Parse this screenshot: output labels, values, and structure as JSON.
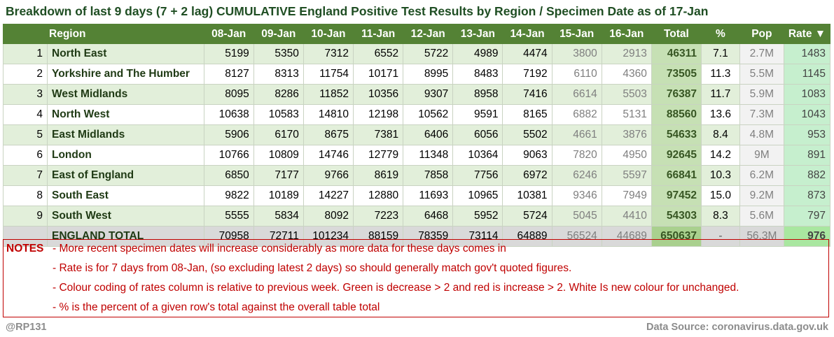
{
  "title": "Breakdown of last 9 days (7 + 2 lag) CUMULATIVE England Positive Test Results by Region / Specimen Date as of 17-Jan",
  "columns": [
    "",
    "Region",
    "08-Jan",
    "09-Jan",
    "10-Jan",
    "11-Jan",
    "12-Jan",
    "13-Jan",
    "14-Jan",
    "15-Jan",
    "16-Jan",
    "Total",
    "%",
    "Pop",
    "Rate ▼"
  ],
  "rows": [
    {
      "rank": "1",
      "region": "North East",
      "days": [
        "5199",
        "5350",
        "7312",
        "6552",
        "5722",
        "4989",
        "4474",
        "3800",
        "2913"
      ],
      "total": "46311",
      "pct": "7.1",
      "pop": "2.7M",
      "rate": "1483"
    },
    {
      "rank": "2",
      "region": "Yorkshire and The Humber",
      "days": [
        "8127",
        "8313",
        "11754",
        "10171",
        "8995",
        "8483",
        "7192",
        "6110",
        "4360"
      ],
      "total": "73505",
      "pct": "11.3",
      "pop": "5.5M",
      "rate": "1145"
    },
    {
      "rank": "3",
      "region": "West Midlands",
      "days": [
        "8095",
        "8286",
        "11852",
        "10356",
        "9307",
        "8958",
        "7416",
        "6614",
        "5503"
      ],
      "total": "76387",
      "pct": "11.7",
      "pop": "5.9M",
      "rate": "1083"
    },
    {
      "rank": "4",
      "region": "North West",
      "days": [
        "10638",
        "10583",
        "14810",
        "12198",
        "10562",
        "9591",
        "8165",
        "6882",
        "5131"
      ],
      "total": "88560",
      "pct": "13.6",
      "pop": "7.3M",
      "rate": "1043"
    },
    {
      "rank": "5",
      "region": "East Midlands",
      "days": [
        "5906",
        "6170",
        "8675",
        "7381",
        "6406",
        "6056",
        "5502",
        "4661",
        "3876"
      ],
      "total": "54633",
      "pct": "8.4",
      "pop": "4.8M",
      "rate": "953"
    },
    {
      "rank": "6",
      "region": "London",
      "days": [
        "10766",
        "10809",
        "14746",
        "12779",
        "11348",
        "10364",
        "9063",
        "7820",
        "4950"
      ],
      "total": "92645",
      "pct": "14.2",
      "pop": "9M",
      "rate": "891"
    },
    {
      "rank": "7",
      "region": "East of England",
      "days": [
        "6850",
        "7177",
        "9766",
        "8619",
        "7858",
        "7756",
        "6972",
        "6246",
        "5597"
      ],
      "total": "66841",
      "pct": "10.3",
      "pop": "6.2M",
      "rate": "882"
    },
    {
      "rank": "8",
      "region": "South East",
      "days": [
        "9822",
        "10189",
        "14227",
        "12880",
        "11693",
        "10965",
        "10381",
        "9346",
        "7949"
      ],
      "total": "97452",
      "pct": "15.0",
      "pop": "9.2M",
      "rate": "873"
    },
    {
      "rank": "9",
      "region": "South West",
      "days": [
        "5555",
        "5834",
        "8092",
        "7223",
        "6468",
        "5952",
        "5724",
        "5045",
        "4410"
      ],
      "total": "54303",
      "pct": "8.3",
      "pop": "5.6M",
      "rate": "797"
    }
  ],
  "total_row": {
    "rank": "",
    "region": "ENGLAND TOTAL",
    "days": [
      "70958",
      "72711",
      "101234",
      "88159",
      "78359",
      "73114",
      "64889",
      "56524",
      "44689"
    ],
    "total": "650637",
    "pct": "-",
    "pop": "56.3M",
    "rate": "976"
  },
  "notes": {
    "label": "NOTES",
    "lines": [
      "- More recent specimen dates will increase considerably as more data for these days comes in",
      "- Rate is for 7 days from 08-Jan, (so excluding latest 2 days) so should generally match gov't quoted figures.",
      "- Colour coding of rates column is relative to previous week. Green is decrease > 2 and red is increase > 2. White Is new colour for unchanged.",
      "- % is the percent of a given row's total against the overall table total"
    ]
  },
  "footer": {
    "handle": "@RP131",
    "source": "Data Source: coronavirus.data.gov.uk"
  },
  "colors": {
    "header_bg": "#548235",
    "title": "#1f4e23",
    "notes": "#c00000",
    "rate_bg": "#c6efce",
    "total_bg": "#c6e0b4"
  }
}
